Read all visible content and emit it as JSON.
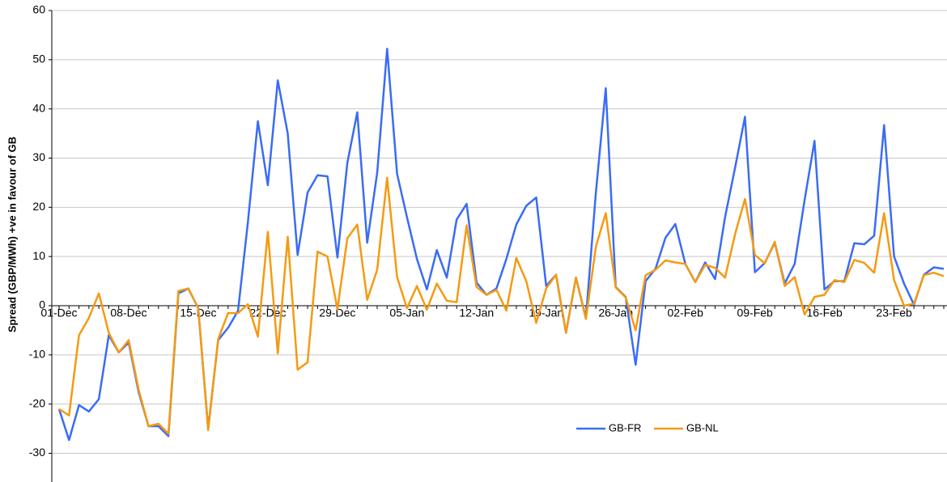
{
  "chart_data": {
    "type": "line",
    "ylabel": "Spread (GBP/MWh) +ve in favour of GB",
    "categories": [
      "01-Dec",
      null,
      null,
      null,
      null,
      null,
      null,
      "08-Dec",
      null,
      null,
      null,
      null,
      null,
      null,
      "15-Dec",
      null,
      null,
      null,
      null,
      null,
      null,
      "22-Dec",
      null,
      null,
      null,
      null,
      null,
      null,
      "29-Dec",
      null,
      null,
      null,
      null,
      null,
      null,
      "05-Jan",
      null,
      null,
      null,
      null,
      null,
      null,
      "12-Jan",
      null,
      null,
      null,
      null,
      null,
      null,
      "19-Jan",
      null,
      null,
      null,
      null,
      null,
      null,
      "26-Jan",
      null,
      null,
      null,
      null,
      null,
      null,
      "02-Feb",
      null,
      null,
      null,
      null,
      null,
      null,
      "09-Feb",
      null,
      null,
      null,
      null,
      null,
      null,
      "16-Feb",
      null,
      null,
      null,
      null,
      null,
      null,
      "23-Feb",
      null,
      null,
      null,
      null,
      null
    ],
    "series": [
      {
        "name": "GB-FR",
        "color": "#3a6cf4",
        "values": [
          -21,
          -27.3,
          -20.2,
          -21.5,
          -19,
          -6,
          -9.5,
          -7.5,
          -17.5,
          -24.5,
          -24.5,
          -26.5,
          2.5,
          3.5,
          -0.5,
          -25,
          -7,
          -4.5,
          -1,
          17,
          37.5,
          24.5,
          45.8,
          35,
          10.3,
          23,
          26.5,
          26.3,
          9.8,
          29,
          39.3,
          12.8,
          27,
          52.2,
          26.8,
          18,
          9.5,
          3.3,
          11.3,
          5.7,
          17.5,
          20.7,
          4.7,
          2.2,
          3.5,
          9.5,
          16.5,
          20.3,
          22,
          4,
          6.3,
          -5.5,
          5.7,
          -2.5,
          23,
          44.2,
          3.8,
          1.8,
          -12,
          5,
          7.5,
          13.8,
          16.6,
          8.5,
          4.8,
          8.8,
          5.4,
          18,
          28,
          38.4,
          6.8,
          8.7,
          12.8,
          4.5,
          8.5,
          21.5,
          33.5,
          3.3,
          5,
          5,
          12.7,
          12.5,
          14.2,
          36.7,
          10,
          4.5,
          0.2,
          6.3,
          7.8,
          7.5
        ]
      },
      {
        "name": "GB-NL",
        "color": "#f59a12",
        "values": [
          -21,
          -22.3,
          -6,
          -2.5,
          2.5,
          -5.5,
          -9.5,
          -7,
          -17,
          -24.5,
          -24,
          -26,
          3,
          3.5,
          -0.5,
          -25.3,
          -6.8,
          -1.5,
          -1.5,
          0.3,
          -6.3,
          15,
          -9.7,
          14,
          -13,
          -11.5,
          11,
          10,
          -0.7,
          13.7,
          16.5,
          1.2,
          7.3,
          26,
          5.8,
          -0.5,
          4,
          -0.8,
          4.5,
          1,
          0.7,
          16.3,
          3.8,
          2.2,
          3.2,
          -1,
          9.7,
          5,
          -3.5,
          3.5,
          6.3,
          -5.5,
          5.7,
          -2.7,
          12,
          18.8,
          3.7,
          1.7,
          -5,
          6.2,
          7.3,
          9.2,
          8.8,
          8.5,
          4.8,
          8.3,
          7.7,
          5.7,
          14.5,
          21.7,
          10.3,
          8.6,
          13,
          4,
          5.8,
          -1.8,
          1.8,
          2.2,
          5.2,
          4.8,
          9.3,
          8.7,
          6.7,
          18.8,
          5.2,
          0,
          0.4,
          6.2,
          6.7,
          6
        ]
      }
    ],
    "ylim": [
      -36,
      60
    ],
    "yticks": [
      -30,
      -20,
      -10,
      0,
      10,
      20,
      30,
      40,
      50,
      60
    ],
    "grid": true,
    "legend": "lower-right"
  }
}
